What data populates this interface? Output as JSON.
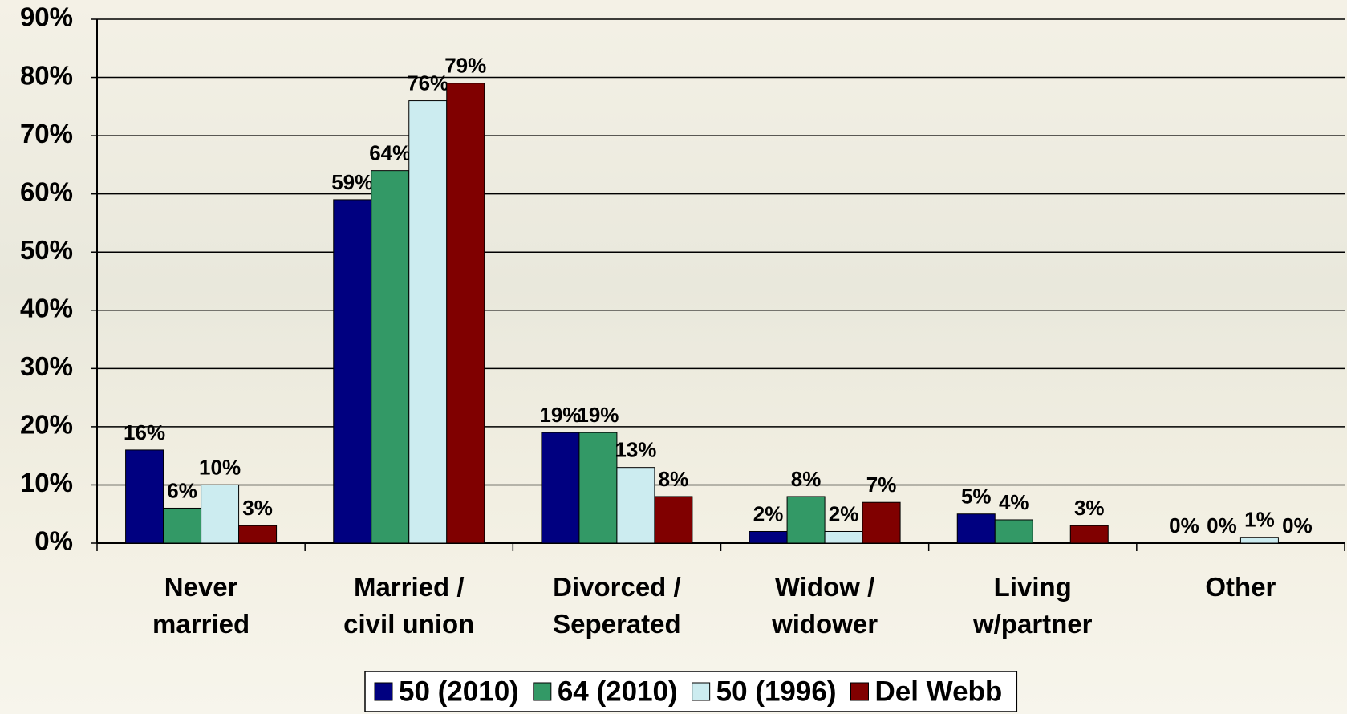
{
  "chart_data": {
    "type": "bar",
    "categories": [
      "Never\nmarried",
      "Married /\ncivil union",
      "Divorced /\nSeperated",
      "Widow /\nwidower",
      "Living\nw/partner",
      "Other"
    ],
    "series": [
      {
        "name": "50 (2010)",
        "color": "#000080",
        "values": [
          16,
          59,
          19,
          2,
          5,
          0
        ],
        "value_labels": [
          "16%",
          "59%",
          "19%",
          "2%",
          "5%",
          "0%"
        ]
      },
      {
        "name": "64 (2010)",
        "color": "#339966",
        "values": [
          6,
          64,
          19,
          8,
          4,
          0
        ],
        "value_labels": [
          "6%",
          "64%",
          "19%",
          "8%",
          "4%",
          "0%"
        ]
      },
      {
        "name": "50 (1996)",
        "color": "#ccecf0",
        "values": [
          10,
          76,
          13,
          2,
          null,
          1
        ],
        "value_labels": [
          "10%",
          "76%",
          "13%",
          "2%",
          null,
          "1%"
        ]
      },
      {
        "name": "Del Webb",
        "color": "#800000",
        "values": [
          3,
          79,
          8,
          7,
          3,
          0
        ],
        "value_labels": [
          "3%",
          "79%",
          "8%",
          "7%",
          "3%",
          "0%"
        ]
      }
    ],
    "ylim": [
      0,
      90
    ],
    "yticks": [
      {
        "value": 0,
        "label": "0%"
      },
      {
        "value": 10,
        "label": "10%"
      },
      {
        "value": 20,
        "label": "20%"
      },
      {
        "value": 30,
        "label": "30%"
      },
      {
        "value": 40,
        "label": "40%"
      },
      {
        "value": 50,
        "label": "50%"
      },
      {
        "value": 60,
        "label": "60%"
      },
      {
        "value": 70,
        "label": "70%"
      },
      {
        "value": 80,
        "label": "80%"
      },
      {
        "value": 90,
        "label": "90%"
      }
    ],
    "grid": true,
    "legend": "bottom"
  }
}
